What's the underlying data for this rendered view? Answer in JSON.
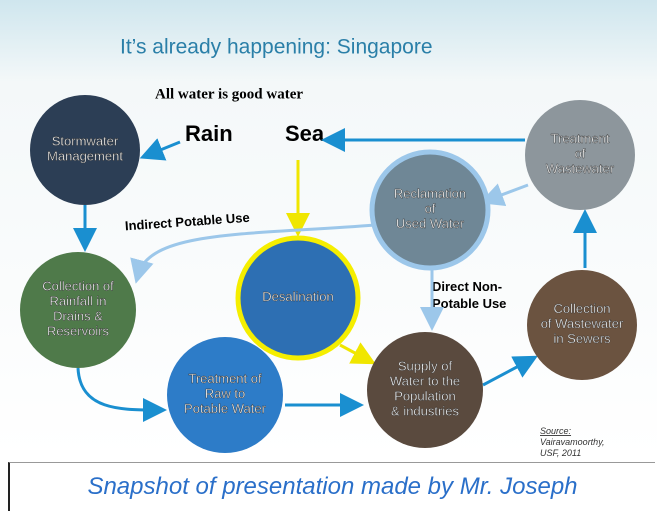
{
  "slide": {
    "title": "It’s already happening: Singapore",
    "subtitle": "All water is good water",
    "rain": "Rain",
    "sea": "Sea",
    "indirect": "Indirect Potable Use",
    "direct": {
      "lines": [
        "Direct Non-",
        "Potable Use"
      ]
    },
    "nodes": [
      {
        "lines": [
          "Stormwater",
          "Management"
        ]
      },
      {
        "lines": [
          "Treatment",
          "of",
          "Wastewater"
        ]
      },
      {
        "lines": [
          "Reclamation",
          "of",
          "Used Water"
        ]
      },
      {
        "lines": [
          "Desalination"
        ]
      },
      {
        "lines": [
          "Collection of",
          "Rainfall in",
          "Drains &",
          "Reservoirs"
        ]
      },
      {
        "lines": [
          "Treatment of",
          "Raw to",
          "Potable Water"
        ]
      },
      {
        "lines": [
          "Supply of",
          "Water to the",
          "Population",
          "& industries"
        ]
      },
      {
        "lines": [
          "Collection",
          "of Wastewater",
          "in Sewers"
        ]
      }
    ],
    "source": {
      "label": "Source:",
      "lines": [
        "Vairavamoorthy,",
        "USF, 2011"
      ]
    }
  },
  "caption": "Snapshot of presentation made by Mr. Joseph"
}
